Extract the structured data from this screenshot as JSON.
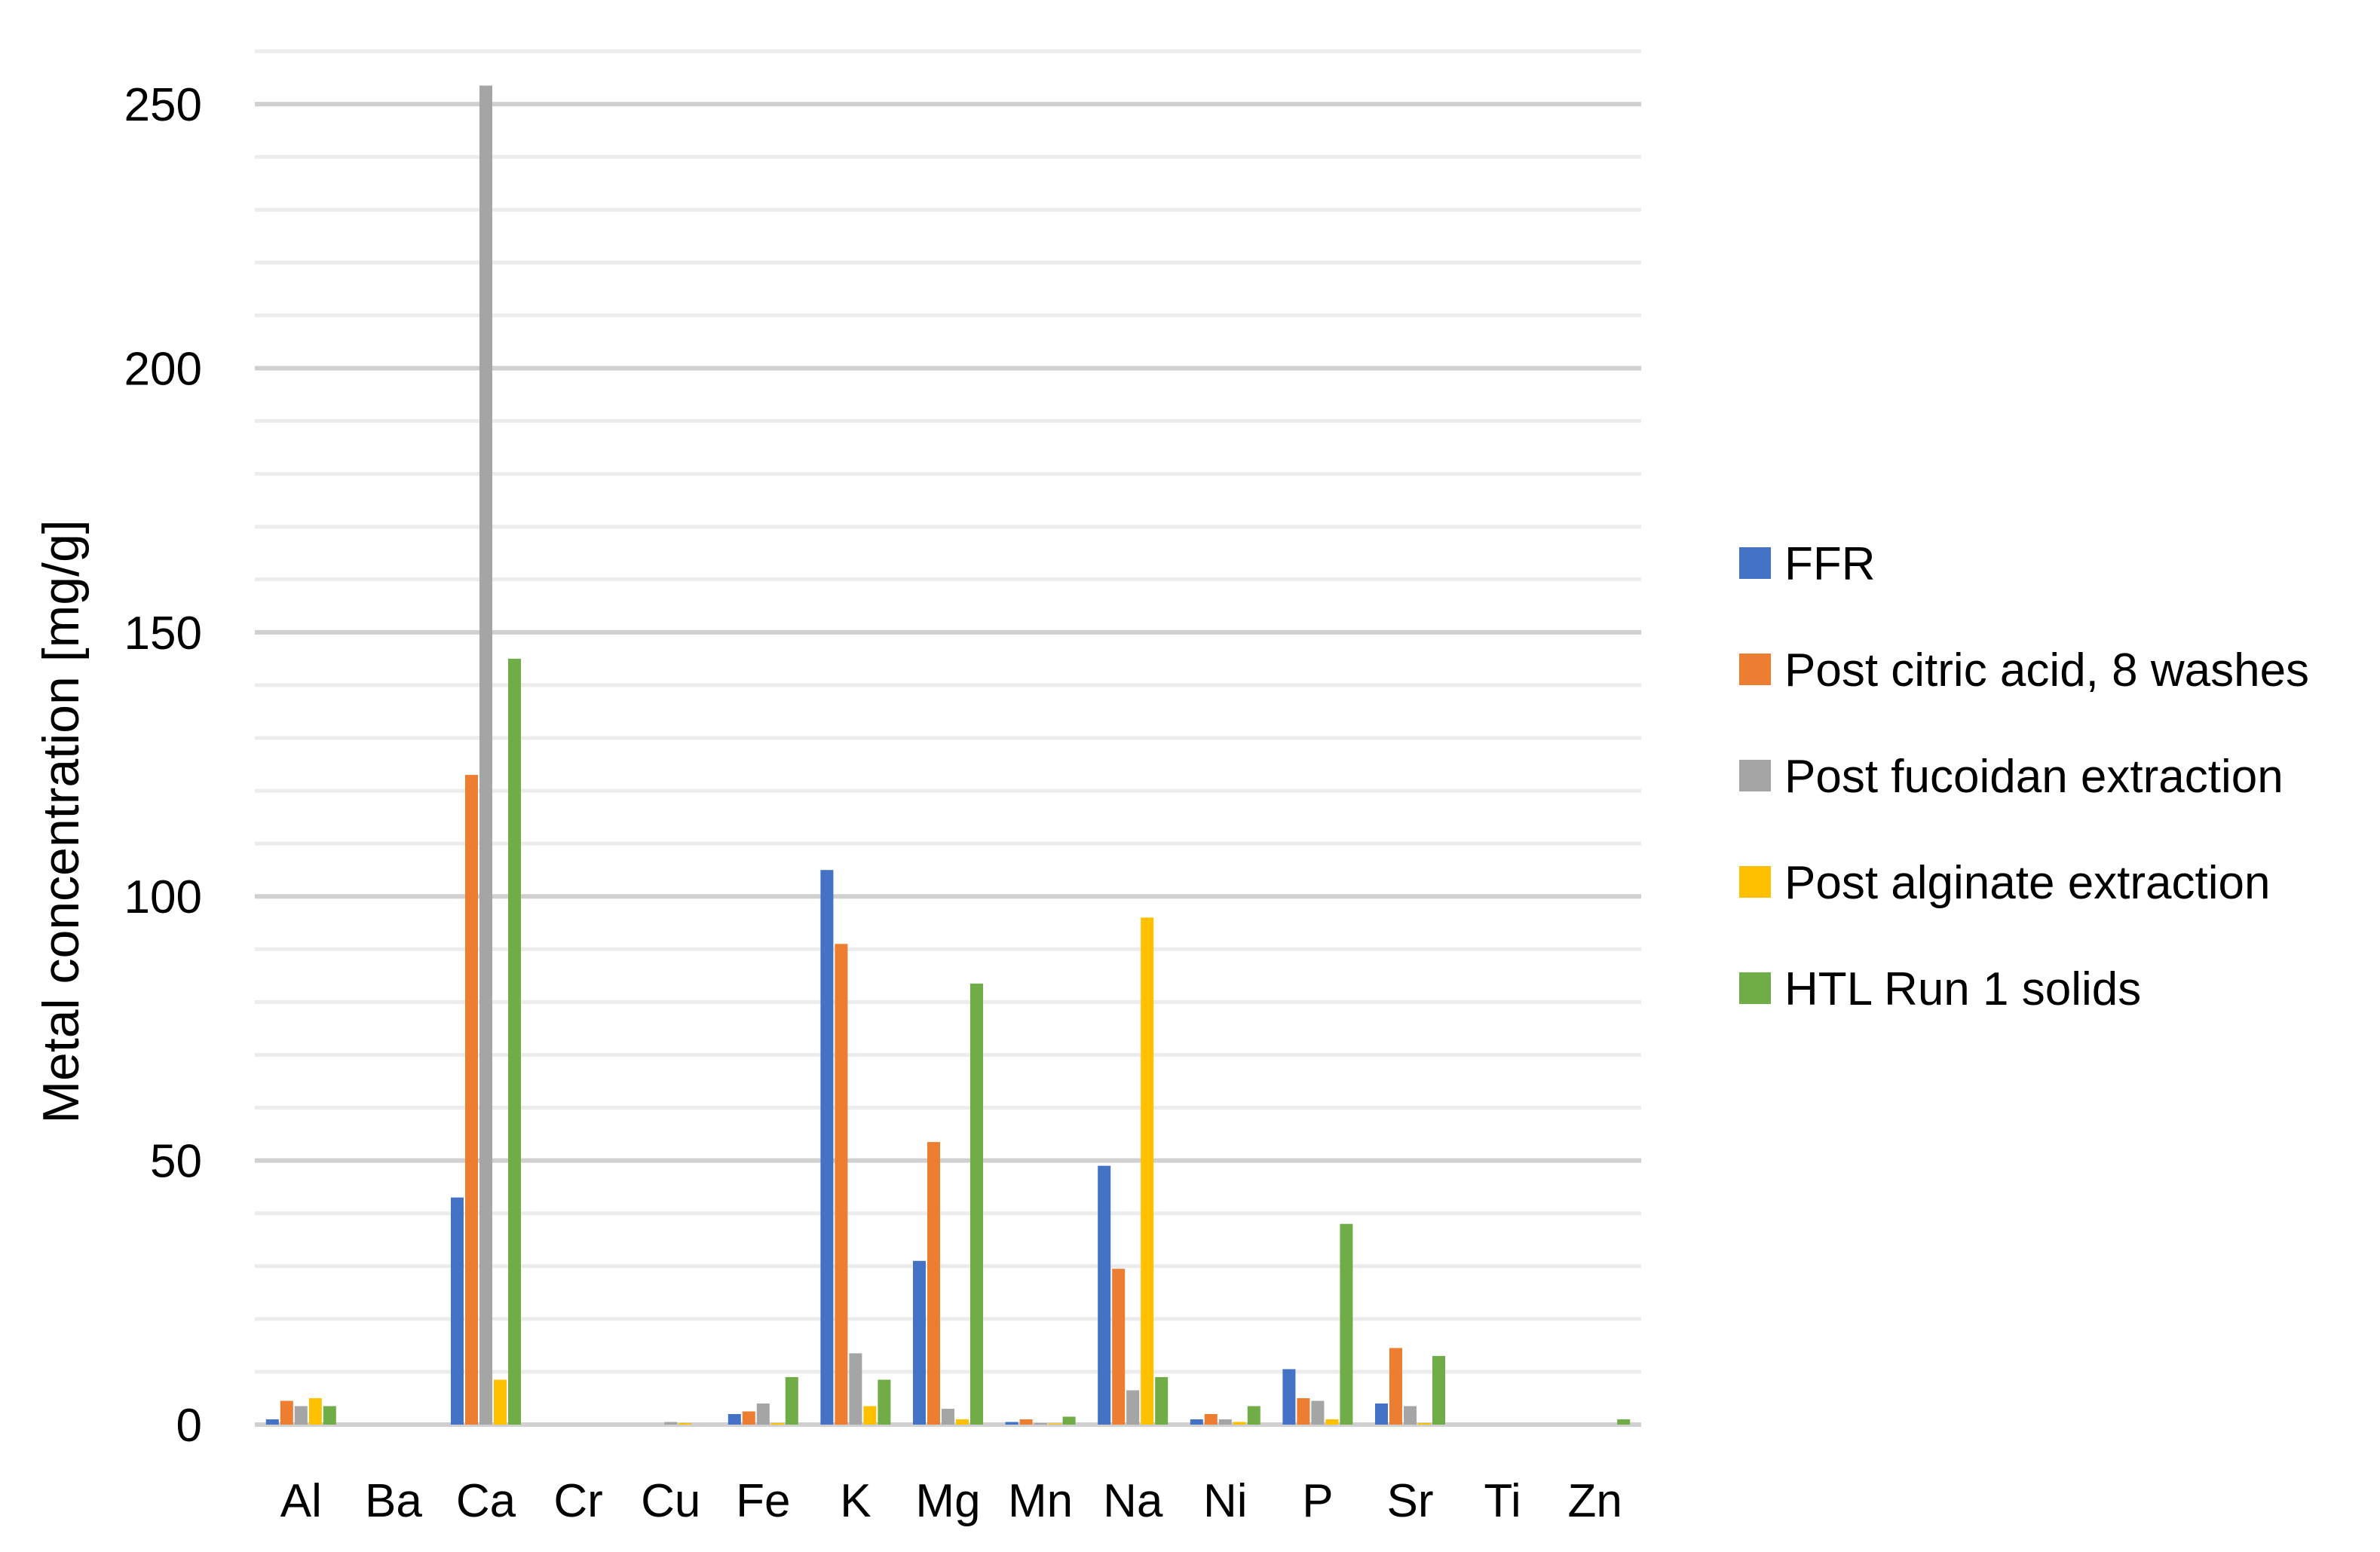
{
  "chart_data": {
    "type": "bar",
    "title": "",
    "xlabel": "",
    "ylabel": "Metal concentration [mg/g]",
    "ylim": [
      0,
      260
    ],
    "yticks": [
      0,
      50,
      100,
      150,
      200,
      250
    ],
    "minor_grid_step": 10,
    "grid": true,
    "legend_position": "right",
    "categories": [
      "Al",
      "Ba",
      "Ca",
      "Cr",
      "Cu",
      "Fe",
      "K",
      "Mg",
      "Mn",
      "Na",
      "Ni",
      "P",
      "Sr",
      "Ti",
      "Zn"
    ],
    "series": [
      {
        "name": "FFR",
        "color": "#4472C4",
        "values": [
          1,
          0,
          43,
          0,
          0,
          2,
          105,
          31,
          0.5,
          49,
          1,
          10.5,
          4,
          0,
          0
        ]
      },
      {
        "name": "Post citric acid, 8 washes",
        "color": "#ED7D31",
        "values": [
          4.5,
          0,
          123,
          0,
          0,
          2.5,
          91,
          53.5,
          1,
          29.5,
          2,
          5,
          14.5,
          0,
          0
        ]
      },
      {
        "name": "Post fucoidan extraction",
        "color": "#A5A5A5",
        "values": [
          3.5,
          0,
          253.5,
          0,
          0.5,
          4,
          13.5,
          3,
          0.3,
          6.5,
          1,
          4.5,
          3.5,
          0,
          0
        ]
      },
      {
        "name": "Post alginate extraction",
        "color": "#FFC000",
        "values": [
          5,
          0,
          8.5,
          0,
          0.3,
          0.3,
          3.5,
          1,
          0.2,
          96,
          0.5,
          1,
          0.3,
          0,
          0
        ]
      },
      {
        "name": "HTL Run 1 solids",
        "color": "#70AD47",
        "values": [
          3.5,
          0,
          145,
          0,
          0,
          9,
          8.5,
          83.5,
          1.5,
          9,
          3.5,
          38,
          13,
          0,
          1
        ]
      }
    ]
  }
}
